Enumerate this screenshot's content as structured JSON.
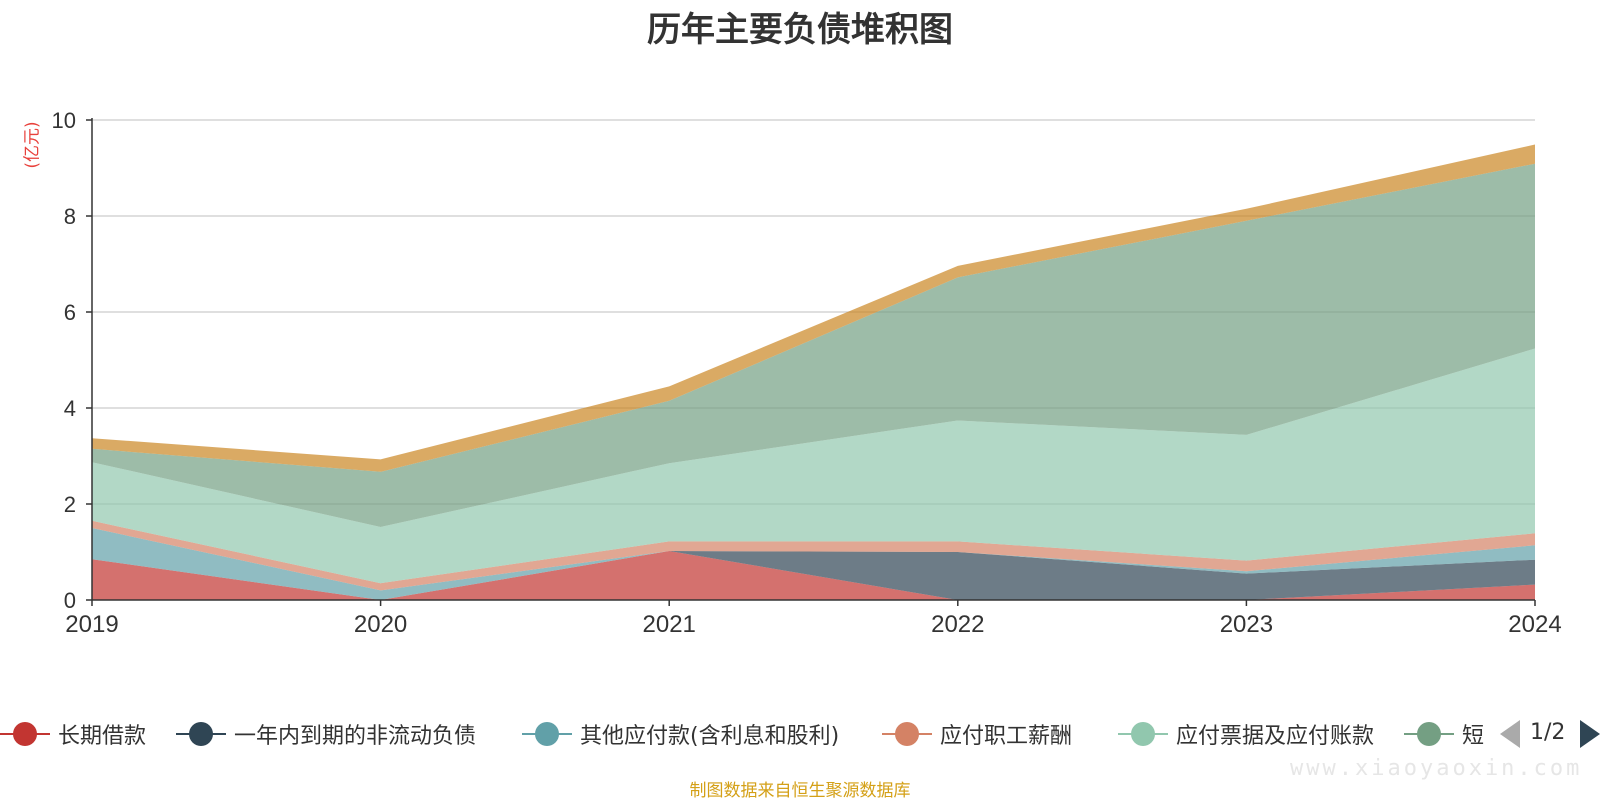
{
  "chart_data": {
    "type": "area",
    "title": "历年主要负债堆积图",
    "unit": "(亿元)",
    "x": [
      "2019",
      "2020",
      "2021",
      "2022",
      "2023",
      "2024"
    ],
    "ylim": [
      0,
      10
    ],
    "yticks": [
      "0",
      "2",
      "4",
      "6",
      "8",
      "10"
    ],
    "grid": true,
    "legend_position": "bottom",
    "stacked": true,
    "series": [
      {
        "name": "长期借款",
        "color": "#c23531",
        "values": [
          0.85,
          0.0,
          1.02,
          0.0,
          0.0,
          0.32
        ]
      },
      {
        "name": "一年内到期的非流动负债",
        "color": "#2f4554",
        "values": [
          0.0,
          0.0,
          0.0,
          1.0,
          0.55,
          0.52
        ]
      },
      {
        "name": "其他应付款(含利息和股利)",
        "color": "#61a0a8",
        "values": [
          0.65,
          0.2,
          0.0,
          0.0,
          0.05,
          0.3
        ]
      },
      {
        "name": "应付职工薪酬",
        "color": "#d48265",
        "values": [
          0.15,
          0.15,
          0.2,
          0.22,
          0.22,
          0.25
        ]
      },
      {
        "name": "应付票据及应付账款",
        "color": "#91c7ae",
        "values": [
          1.22,
          1.17,
          1.63,
          2.52,
          2.62,
          3.85
        ]
      },
      {
        "name": "短期借款",
        "color": "#749f83",
        "values": [
          0.28,
          1.15,
          1.3,
          2.98,
          4.46,
          3.85
        ]
      },
      {
        "name": "",
        "color": "#ca8622",
        "values": [
          0.22,
          0.26,
          0.3,
          0.24,
          0.25,
          0.4
        ]
      }
    ]
  },
  "legend": {
    "items": [
      {
        "name": "长期借款",
        "color": "#c23531"
      },
      {
        "name": "一年内到期的非流动负债",
        "color": "#2f4554"
      },
      {
        "name": "其他应付款(含利息和股利)",
        "color": "#61a0a8"
      },
      {
        "name": "应付职工薪酬",
        "color": "#d48265"
      },
      {
        "name": "应付票据及应付账款",
        "color": "#91c7ae"
      },
      {
        "name": "短",
        "color": "#749f83"
      }
    ],
    "page": "1/2"
  },
  "source_text": "制图数据来自恒生聚源数据库",
  "watermark_text": "www.xiaoyaoxin.com"
}
